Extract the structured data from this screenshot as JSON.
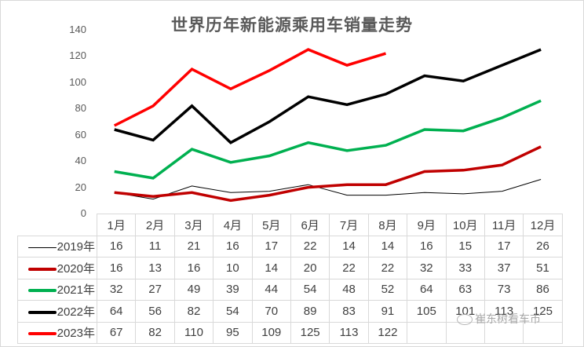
{
  "chart_data": {
    "type": "line",
    "title": "世界历年新能源乘用车销量走势",
    "xlabel": "",
    "ylabel": "",
    "ylim": [
      0,
      140
    ],
    "yticks": [
      0,
      20,
      40,
      60,
      80,
      100,
      120,
      140
    ],
    "grid": false,
    "legend_position": "data-table-left",
    "categories": [
      "1月",
      "2月",
      "3月",
      "4月",
      "5月",
      "6月",
      "7月",
      "8月",
      "9月",
      "10月",
      "11月",
      "12月"
    ],
    "series": [
      {
        "name": "2019年",
        "color": "#000000",
        "width": 1,
        "values": [
          16,
          11,
          21,
          16,
          17,
          22,
          14,
          14,
          16,
          15,
          17,
          26
        ]
      },
      {
        "name": "2020年",
        "color": "#c00000",
        "width": 3.5,
        "values": [
          16,
          13,
          16,
          10,
          14,
          20,
          22,
          22,
          32,
          33,
          37,
          51
        ]
      },
      {
        "name": "2021年",
        "color": "#00b050",
        "width": 3.5,
        "values": [
          32,
          27,
          49,
          39,
          44,
          54,
          48,
          52,
          64,
          63,
          73,
          86
        ]
      },
      {
        "name": "2022年",
        "color": "#000000",
        "width": 3.5,
        "values": [
          64,
          56,
          82,
          54,
          70,
          89,
          83,
          91,
          105,
          101,
          113,
          125
        ]
      },
      {
        "name": "2023年",
        "color": "#ff0000",
        "width": 3.5,
        "values": [
          67,
          82,
          110,
          95,
          109,
          125,
          113,
          122,
          null,
          null,
          null,
          null
        ]
      }
    ]
  },
  "table": {
    "rows": [
      {
        "label": "2019年",
        "cells": [
          "16",
          "11",
          "21",
          "16",
          "17",
          "22",
          "14",
          "14",
          "16",
          "15",
          "17",
          "26"
        ]
      },
      {
        "label": "2020年",
        "cells": [
          "16",
          "13",
          "16",
          "10",
          "14",
          "20",
          "22",
          "22",
          "32",
          "33",
          "37",
          "51"
        ]
      },
      {
        "label": "2021年",
        "cells": [
          "32",
          "27",
          "49",
          "39",
          "44",
          "54",
          "48",
          "52",
          "64",
          "63",
          "73",
          "86"
        ]
      },
      {
        "label": "2022年",
        "cells": [
          "64",
          "56",
          "82",
          "54",
          "70",
          "89",
          "83",
          "91",
          "105",
          "101",
          "113",
          "125"
        ]
      },
      {
        "label": "2023年",
        "cells": [
          "67",
          "82",
          "110",
          "95",
          "109",
          "125",
          "113",
          "122",
          "",
          "",
          "",
          ""
        ]
      }
    ]
  },
  "yaxis": {
    "ticks": [
      "140",
      "120",
      "100",
      "80",
      "60",
      "40",
      "20",
      "0"
    ]
  },
  "watermark": {
    "text": "崔东树看车市",
    "icon": "wechat-icon"
  }
}
